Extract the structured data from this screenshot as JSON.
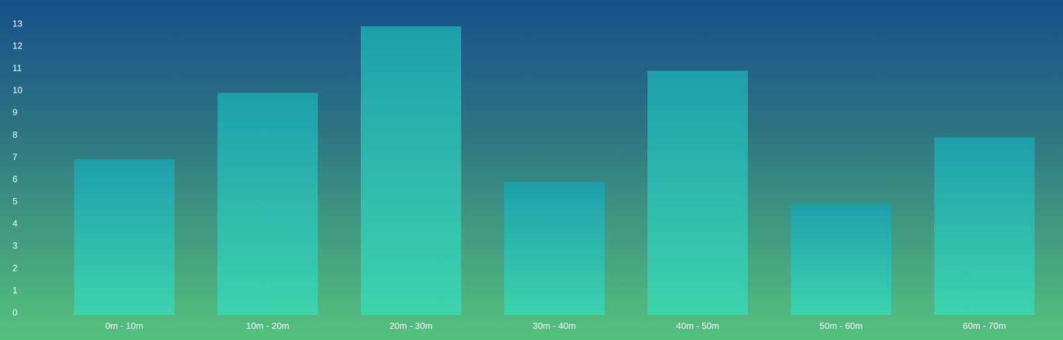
{
  "colors": {
    "background_top": "#17508a",
    "background_bottom": "#56c17e",
    "bar_top": "#1e9fab",
    "bar_bottom": "#3cd4ad",
    "text": "#ffffff"
  },
  "chart_data": {
    "type": "bar",
    "title": "",
    "xlabel": "",
    "ylabel": "",
    "categories": [
      "0m - 10m",
      "10m - 20m",
      "20m - 30m",
      "30m - 40m",
      "40m - 50m",
      "50m - 60m",
      "60m - 70m"
    ],
    "values": [
      7,
      10,
      13,
      6,
      11,
      5,
      8
    ],
    "ylim": [
      0,
      13
    ],
    "yticks": [
      0,
      1,
      2,
      3,
      4,
      5,
      6,
      7,
      8,
      9,
      10,
      11,
      12,
      13
    ],
    "grid": false,
    "legend": "none"
  }
}
